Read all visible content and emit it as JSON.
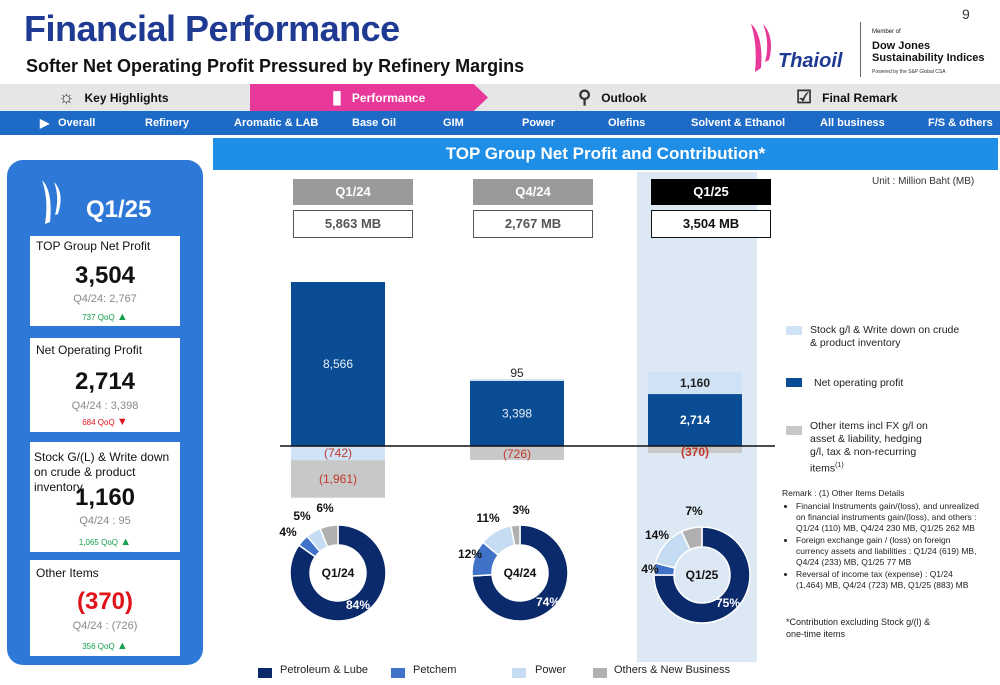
{
  "header": {
    "title": "Financial Performance",
    "subtitle": "Softer Net Operating Profit Pressured by Refinery Margins",
    "page_number": "9",
    "logo_text": "Thaioil",
    "dj_member": "Member of",
    "dj_name": "Dow Jones Sustainability Indices",
    "dj_powered": "Powered by the S&P Global CSA"
  },
  "top_nav": [
    {
      "label": "Key Highlights",
      "icon": "lightbulb-icon"
    },
    {
      "label": "Performance",
      "icon": "bar-chart-icon",
      "active": true
    },
    {
      "label": "Outlook",
      "icon": "magnifier-icon"
    },
    {
      "label": "Final Remark",
      "icon": "checklist-icon"
    }
  ],
  "sub_nav": [
    "Overall",
    "Refinery",
    "Aromatic  & LAB",
    "Base Oil",
    "GIM",
    "Power",
    "Olefins",
    "Solvent & Ethanol",
    "All business",
    "F/S & others"
  ],
  "left_panel": {
    "quarter": "Q1/25",
    "cards": [
      {
        "label": "TOP Group Net Profit",
        "value": "3,504",
        "prev": "Q4/24: 2,767",
        "qoq": "737 QoQ",
        "direction": "up",
        "value_color": "#111111"
      },
      {
        "label": "Net Operating Profit",
        "value": "2,714",
        "prev": "Q4/24 : 3,398",
        "qoq": "684 QoQ",
        "direction": "down",
        "value_color": "#111111"
      },
      {
        "label": "Stock G/(L) & Write down on crude & product inventory",
        "value": "1,160",
        "prev": "Q4/24 : 95",
        "qoq": "1,065 QoQ",
        "direction": "up",
        "value_color": "#111111"
      },
      {
        "label": "Other Items",
        "value": "(370)",
        "prev": "Q4/24 : (726)",
        "qoq": "356  QoQ",
        "direction": "up",
        "value_color": "#e0121a"
      }
    ]
  },
  "chart_banner": "TOP Group Net Profit and Contribution*",
  "unit": "Unit : Million Baht (MB)",
  "quarters": [
    {
      "label": "Q1/24",
      "total": "5,863 MB"
    },
    {
      "label": "Q4/24",
      "total": "2,767 MB"
    },
    {
      "label": "Q1/25",
      "total": "3,504 MB"
    }
  ],
  "chart_data": [
    {
      "type": "bar",
      "stacked": true,
      "categories": [
        "Q1/24",
        "Q4/24",
        "Q1/25"
      ],
      "series": [
        {
          "name": "Net operating profit",
          "values": [
            8566,
            3398,
            2714
          ],
          "labels": [
            "8,566",
            "3,398",
            "2,714"
          ],
          "color": "#0b4d94"
        },
        {
          "name": "Stock g/l & Write down on crude & product inventory",
          "values": [
            -742,
            95,
            1160
          ],
          "labels": [
            "(742)",
            "95",
            "1,160"
          ],
          "color": "#cfe2f6"
        },
        {
          "name": "Other items   incl FX g/l on asset & liability, hedging g/l, tax & non-recurring items",
          "values": [
            -1961,
            -726,
            -370
          ],
          "labels": [
            "(1,961)",
            "(726)",
            "(370)"
          ],
          "color": "#c8c8c8"
        }
      ],
      "legend": "right"
    },
    {
      "type": "pie",
      "donut": true,
      "groups": [
        {
          "name": "Q1/24",
          "slices": [
            {
              "label": "Petroleum & Lube",
              "value": 84
            },
            {
              "label": "Petchem",
              "value": 4
            },
            {
              "label": "Power",
              "value": 5
            },
            {
              "label": "Others & New Business",
              "value": 6
            }
          ],
          "pct_labels": [
            "84%",
            "4%",
            "5%",
            "6%"
          ]
        },
        {
          "name": "Q4/24",
          "slices": [
            {
              "label": "Petroleum & Lube",
              "value": 74
            },
            {
              "label": "Petchem",
              "value": 12
            },
            {
              "label": "Power",
              "value": 11
            },
            {
              "label": "Others & New Business",
              "value": 3
            }
          ],
          "pct_labels": [
            "74%",
            "12%",
            "11%",
            "3%"
          ]
        },
        {
          "name": "Q1/25",
          "slices": [
            {
              "label": "Petroleum & Lube",
              "value": 75
            },
            {
              "label": "Petchem",
              "value": 4
            },
            {
              "label": "Power",
              "value": 14
            },
            {
              "label": "Others & New Business",
              "value": 7
            }
          ],
          "pct_labels": [
            "75%",
            "4%",
            "14%",
            "7%"
          ]
        }
      ],
      "colors": [
        "#0b2a6b",
        "#3f72c8",
        "#c6dcf2",
        "#b0b0b0"
      ],
      "legend": "bottom"
    }
  ],
  "legend_right": [
    {
      "label": "Stock g/l & Write down on crude & product inventory",
      "color": "#cfe2f6"
    },
    {
      "label": "Net operating profit",
      "color": "#0b4d94"
    },
    {
      "label": "Other items    incl FX g/l on asset & liability, hedging g/l, tax & non-recurring items",
      "sup": "(1)",
      "color": "#c8c8c8"
    }
  ],
  "legend_bottom": [
    {
      "label": "Petroleum & Lube",
      "color": "#0b2a6b"
    },
    {
      "label": "Petchem",
      "color": "#3f72c8"
    },
    {
      "label": "Power",
      "color": "#c6dcf2"
    },
    {
      "label": "Others & New Business",
      "color": "#b0b0b0"
    }
  ],
  "remark": {
    "title": "Remark : (1) Other Items Details",
    "items": [
      "Financial Instruments gain/(loss), and unrealized on financial instruments gain/(loss), and others : Q1/24 (110) MB, Q4/24 230 MB, Q1/25 262 MB",
      "Foreign exchange gain / (loss) on foreign currency assets and liabilities : Q1/24 (619) MB, Q4/24 (233) MB, Q1/25 77 MB",
      "Reversal of income tax (expense) : Q1/24 (1,464) MB, Q4/24 (723) MB, Q1/25 (883) MB"
    ]
  },
  "footnote": "*Contribution excluding Stock g/(l) & one-time items"
}
